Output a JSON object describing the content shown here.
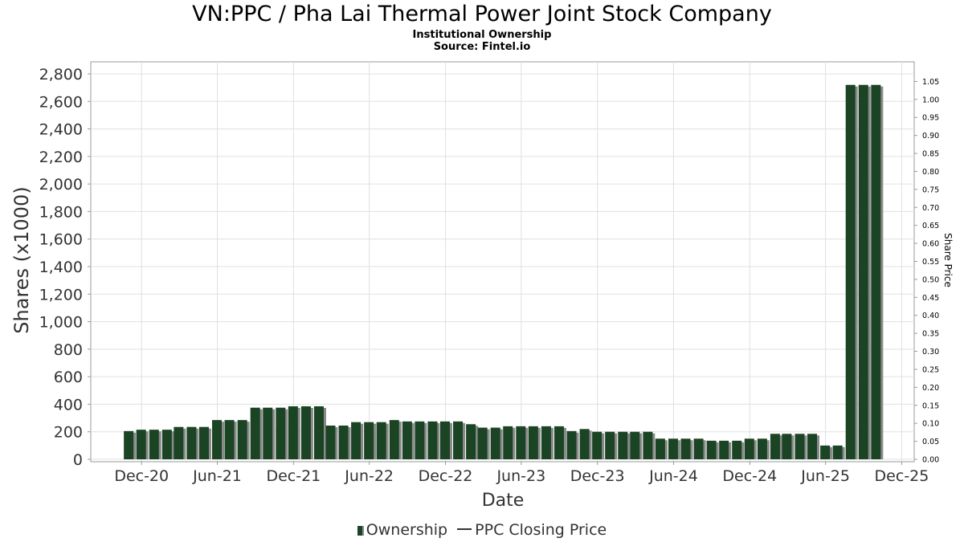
{
  "title": "VN:PPC / Pha Lai Thermal Power Joint Stock Company",
  "subtitle_lines": [
    "Institutional Ownership",
    "Source: Fintel.io"
  ],
  "chart_data": {
    "type": "bar",
    "xlabel": "Date",
    "ylabel": "Shares (x1000)",
    "y2label": "Share Price",
    "ylim": [
      0,
      2850
    ],
    "y2lim": [
      0,
      1.05
    ],
    "yticks": [
      0,
      200,
      400,
      600,
      800,
      1000,
      1200,
      1400,
      1600,
      1800,
      2000,
      2200,
      2400,
      2600,
      2800
    ],
    "ytick_labels": [
      "0",
      "200",
      "400",
      "600",
      "800",
      "1,000",
      "1,200",
      "1,400",
      "1,600",
      "1,800",
      "2,000",
      "2,200",
      "2,400",
      "2,600",
      "2,800"
    ],
    "y2ticks": [
      "0.00",
      "0.05",
      "0.10",
      "0.15",
      "0.20",
      "0.25",
      "0.30",
      "0.35",
      "0.40",
      "0.45",
      "0.50",
      "0.55",
      "0.60",
      "0.65",
      "0.70",
      "0.75",
      "0.80",
      "0.85",
      "0.90",
      "0.95",
      "1.00",
      "1.05"
    ],
    "xlim": [
      "2020-08-01",
      "2025-12-31"
    ],
    "xticks": [
      {
        "date": "2020-12-01",
        "label": "Dec-20"
      },
      {
        "date": "2021-06-01",
        "label": "Jun-21"
      },
      {
        "date": "2021-12-01",
        "label": "Dec-21"
      },
      {
        "date": "2022-06-01",
        "label": "Jun-22"
      },
      {
        "date": "2022-12-01",
        "label": "Dec-22"
      },
      {
        "date": "2023-06-01",
        "label": "Jun-23"
      },
      {
        "date": "2023-12-01",
        "label": "Dec-23"
      },
      {
        "date": "2024-06-01",
        "label": "Jun-24"
      },
      {
        "date": "2024-12-01",
        "label": "Dec-24"
      },
      {
        "date": "2025-06-01",
        "label": "Jun-25"
      },
      {
        "date": "2025-12-01",
        "label": "Dec-25"
      }
    ],
    "grid": true,
    "legend_position": "bottom-center",
    "series": [
      {
        "name": "Ownership",
        "color": "#1b4424",
        "points": [
          {
            "x": "2020-10-31",
            "y": 205
          },
          {
            "x": "2020-11-30",
            "y": 215
          },
          {
            "x": "2020-12-31",
            "y": 215
          },
          {
            "x": "2021-01-31",
            "y": 215
          },
          {
            "x": "2021-02-28",
            "y": 235
          },
          {
            "x": "2021-03-31",
            "y": 235
          },
          {
            "x": "2021-04-30",
            "y": 235
          },
          {
            "x": "2021-05-31",
            "y": 285
          },
          {
            "x": "2021-06-30",
            "y": 285
          },
          {
            "x": "2021-07-31",
            "y": 285
          },
          {
            "x": "2021-08-31",
            "y": 375
          },
          {
            "x": "2021-09-30",
            "y": 375
          },
          {
            "x": "2021-10-31",
            "y": 375
          },
          {
            "x": "2021-11-30",
            "y": 385
          },
          {
            "x": "2021-12-31",
            "y": 385
          },
          {
            "x": "2022-01-31",
            "y": 385
          },
          {
            "x": "2022-02-28",
            "y": 245
          },
          {
            "x": "2022-03-31",
            "y": 245
          },
          {
            "x": "2022-04-30",
            "y": 270
          },
          {
            "x": "2022-05-31",
            "y": 270
          },
          {
            "x": "2022-06-30",
            "y": 270
          },
          {
            "x": "2022-07-31",
            "y": 285
          },
          {
            "x": "2022-08-31",
            "y": 275
          },
          {
            "x": "2022-09-30",
            "y": 275
          },
          {
            "x": "2022-10-31",
            "y": 275
          },
          {
            "x": "2022-11-30",
            "y": 275
          },
          {
            "x": "2022-12-31",
            "y": 275
          },
          {
            "x": "2023-01-31",
            "y": 255
          },
          {
            "x": "2023-02-28",
            "y": 230
          },
          {
            "x": "2023-03-31",
            "y": 230
          },
          {
            "x": "2023-04-30",
            "y": 240
          },
          {
            "x": "2023-05-31",
            "y": 240
          },
          {
            "x": "2023-06-30",
            "y": 240
          },
          {
            "x": "2023-07-31",
            "y": 240
          },
          {
            "x": "2023-08-31",
            "y": 240
          },
          {
            "x": "2023-09-30",
            "y": 205
          },
          {
            "x": "2023-10-31",
            "y": 220
          },
          {
            "x": "2023-11-30",
            "y": 200
          },
          {
            "x": "2023-12-31",
            "y": 200
          },
          {
            "x": "2024-01-31",
            "y": 200
          },
          {
            "x": "2024-02-29",
            "y": 200
          },
          {
            "x": "2024-03-31",
            "y": 200
          },
          {
            "x": "2024-04-30",
            "y": 150
          },
          {
            "x": "2024-05-31",
            "y": 150
          },
          {
            "x": "2024-06-30",
            "y": 150
          },
          {
            "x": "2024-07-31",
            "y": 150
          },
          {
            "x": "2024-08-31",
            "y": 135
          },
          {
            "x": "2024-09-30",
            "y": 135
          },
          {
            "x": "2024-10-31",
            "y": 135
          },
          {
            "x": "2024-11-30",
            "y": 150
          },
          {
            "x": "2024-12-31",
            "y": 150
          },
          {
            "x": "2025-01-31",
            "y": 185
          },
          {
            "x": "2025-02-28",
            "y": 185
          },
          {
            "x": "2025-03-31",
            "y": 185
          },
          {
            "x": "2025-04-30",
            "y": 185
          },
          {
            "x": "2025-05-31",
            "y": 100
          },
          {
            "x": "2025-06-30",
            "y": 100
          },
          {
            "x": "2025-07-31",
            "y": 2720
          },
          {
            "x": "2025-08-31",
            "y": 2720
          },
          {
            "x": "2025-09-30",
            "y": 2720
          }
        ]
      },
      {
        "name": "PPC Closing Price",
        "color": "#333333",
        "points": []
      }
    ]
  },
  "colors": {
    "bar_fill": "#1b4424",
    "bar_shadow": "#8a8a8a",
    "grid": "#e0e0e0",
    "axis": "#999999",
    "text": "#333333"
  }
}
